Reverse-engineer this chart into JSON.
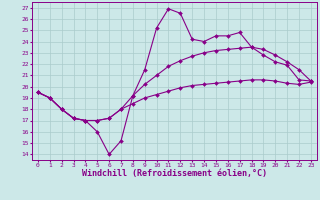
{
  "xlabel": "Windchill (Refroidissement éolien,°C)",
  "xlim": [
    -0.5,
    23.5
  ],
  "ylim": [
    13.5,
    27.5
  ],
  "xticks": [
    0,
    1,
    2,
    3,
    4,
    5,
    6,
    7,
    8,
    9,
    10,
    11,
    12,
    13,
    14,
    15,
    16,
    17,
    18,
    19,
    20,
    21,
    22,
    23
  ],
  "yticks": [
    14,
    15,
    16,
    17,
    18,
    19,
    20,
    21,
    22,
    23,
    24,
    25,
    26,
    27
  ],
  "bg_color": "#cce8e8",
  "grid_color": "#aacccc",
  "line_color": "#880088",
  "line1_x": [
    0,
    1,
    2,
    3,
    4,
    5,
    6,
    7,
    8,
    9,
    10,
    11,
    12,
    13,
    14,
    15,
    16,
    17,
    18,
    19,
    20,
    21,
    22,
    23
  ],
  "line1_y": [
    19.5,
    19.0,
    18.0,
    17.2,
    17.0,
    16.0,
    14.0,
    15.2,
    19.2,
    21.5,
    25.2,
    26.9,
    26.5,
    24.2,
    24.0,
    24.5,
    24.5,
    24.8,
    23.5,
    22.8,
    22.2,
    21.9,
    20.6,
    20.5
  ],
  "line2_x": [
    0,
    1,
    2,
    3,
    4,
    5,
    6,
    7,
    8,
    9,
    10,
    11,
    12,
    13,
    14,
    15,
    16,
    17,
    18,
    19,
    20,
    21,
    22,
    23
  ],
  "line2_y": [
    19.5,
    19.0,
    18.0,
    17.2,
    17.0,
    17.0,
    17.2,
    18.0,
    19.2,
    20.2,
    21.0,
    21.8,
    22.3,
    22.7,
    23.0,
    23.2,
    23.3,
    23.4,
    23.5,
    23.3,
    22.8,
    22.2,
    21.5,
    20.5
  ],
  "line3_x": [
    0,
    1,
    2,
    3,
    4,
    5,
    6,
    7,
    8,
    9,
    10,
    11,
    12,
    13,
    14,
    15,
    16,
    17,
    18,
    19,
    20,
    21,
    22,
    23
  ],
  "line3_y": [
    19.5,
    19.0,
    18.0,
    17.2,
    17.0,
    17.0,
    17.2,
    18.0,
    18.5,
    19.0,
    19.3,
    19.6,
    19.9,
    20.1,
    20.2,
    20.3,
    20.4,
    20.5,
    20.6,
    20.6,
    20.5,
    20.3,
    20.2,
    20.4
  ],
  "marker": "D",
  "markersize": 2.0,
  "linewidth": 0.8,
  "tick_fontsize": 4.5,
  "label_fontsize": 6.0
}
